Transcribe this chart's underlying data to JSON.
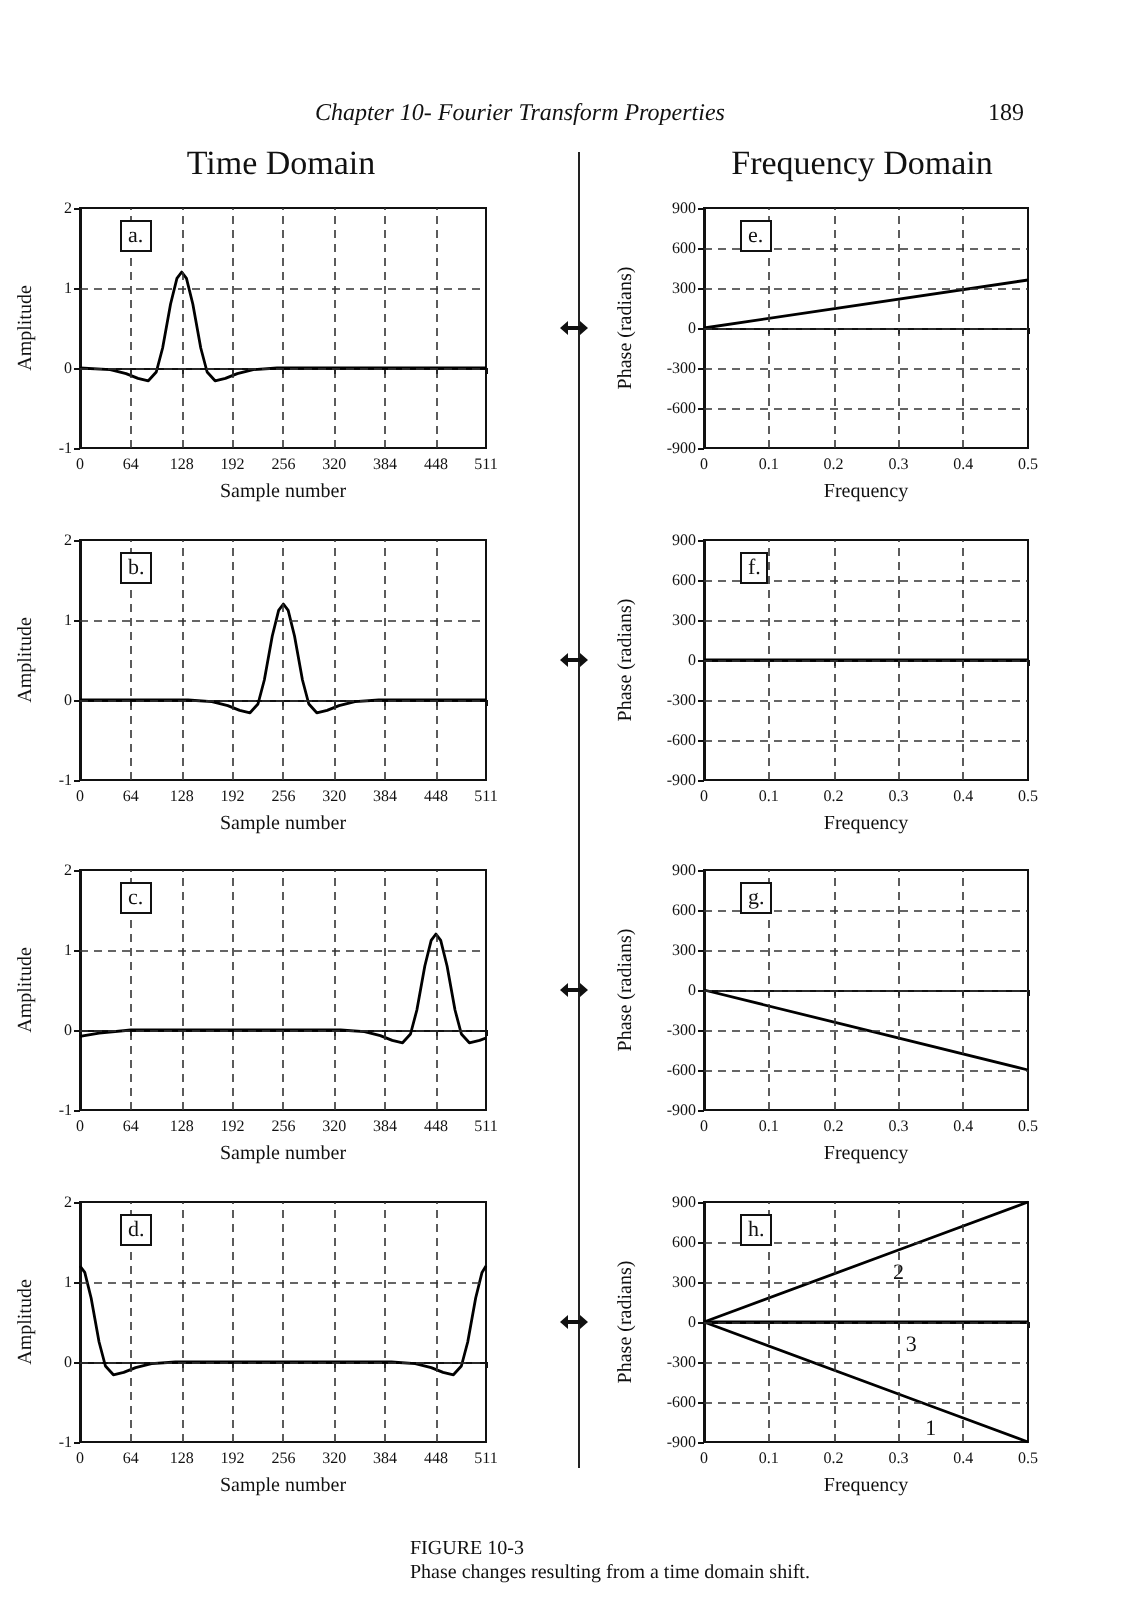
{
  "chart_data": [
    {
      "type": "line",
      "title": "Time Domain",
      "xlabel": "Sample number",
      "ylabel": "Amplitude",
      "annotations": [
        "a.",
        "Chapter 10- Fourier Transform Properties",
        "189"
      ],
      "marker": "none",
      "grid": true,
      "color": "#000000",
      "x": [
        0,
        38,
        58,
        73,
        86,
        96,
        104,
        114,
        122,
        128,
        134,
        142,
        152,
        160,
        170,
        183,
        198,
        218,
        248,
        511
      ],
      "values": [
        0,
        -0.02,
        -0.07,
        -0.13,
        -0.16,
        -0.05,
        0.25,
        0.8,
        1.12,
        1.2,
        1.12,
        0.8,
        0.25,
        -0.05,
        -0.16,
        -0.13,
        -0.07,
        -0.02,
        0,
        0
      ],
      "xlim": [
        0,
        511
      ],
      "xticks": [
        0,
        64,
        128,
        192,
        256,
        320,
        384,
        448,
        511
      ],
      "ylim": [
        -1,
        2
      ],
      "yticks": [
        -1,
        0,
        1,
        2
      ]
    },
    {
      "type": "line",
      "title": "Frequency Domain",
      "xlabel": "Frequency",
      "ylabel": "Phase (radians)",
      "annotations": [
        "e."
      ],
      "marker": "none",
      "grid": true,
      "color": "#000000",
      "x": [
        0,
        0.5
      ],
      "values": [
        0,
        360
      ],
      "xlim": [
        0,
        0.5
      ],
      "xticks": [
        0,
        0.1,
        0.2,
        0.3,
        0.4,
        0.5
      ],
      "ylim": [
        -900,
        900
      ],
      "yticks": [
        -900,
        -600,
        -300,
        0,
        300,
        600,
        900
      ]
    },
    {
      "type": "line",
      "xlabel": "Sample number",
      "ylabel": "Amplitude",
      "annotations": [
        "b."
      ],
      "marker": "none",
      "grid": true,
      "color": "#000000",
      "x": [
        0,
        136,
        166,
        186,
        201,
        214,
        224,
        232,
        242,
        250,
        256,
        262,
        270,
        280,
        288,
        298,
        311,
        326,
        346,
        376,
        511
      ],
      "values": [
        0,
        0,
        -0.02,
        -0.07,
        -0.13,
        -0.16,
        -0.05,
        0.25,
        0.8,
        1.12,
        1.2,
        1.12,
        0.8,
        0.25,
        -0.05,
        -0.16,
        -0.13,
        -0.07,
        -0.02,
        0,
        0
      ],
      "xlim": [
        0,
        511
      ],
      "xticks": [
        0,
        64,
        128,
        192,
        256,
        320,
        384,
        448,
        511
      ],
      "ylim": [
        -1,
        2
      ],
      "yticks": [
        -1,
        0,
        1,
        2
      ]
    },
    {
      "type": "line",
      "xlabel": "Frequency",
      "ylabel": "Phase (radians)",
      "annotations": [
        "f."
      ],
      "marker": "none",
      "grid": true,
      "color": "#000000",
      "x": [
        0,
        0.5
      ],
      "values": [
        0,
        0
      ],
      "xlim": [
        0,
        0.5
      ],
      "xticks": [
        0,
        0.1,
        0.2,
        0.3,
        0.4,
        0.5
      ],
      "ylim": [
        -900,
        900
      ],
      "yticks": [
        -900,
        -600,
        -300,
        0,
        300,
        600,
        900
      ]
    },
    {
      "type": "line",
      "xlabel": "Sample number",
      "ylabel": "Amplitude",
      "annotations": [
        "c."
      ],
      "marker": "none",
      "grid": true,
      "color": "#000000",
      "x": [
        0,
        24,
        64,
        328,
        358,
        378,
        393,
        406,
        416,
        424,
        434,
        442,
        448,
        454,
        462,
        472,
        480,
        490,
        503,
        511
      ],
      "values": [
        -0.08,
        -0.04,
        0,
        0,
        -0.02,
        -0.07,
        -0.13,
        -0.16,
        -0.05,
        0.25,
        0.8,
        1.12,
        1.2,
        1.12,
        0.8,
        0.25,
        -0.05,
        -0.16,
        -0.13,
        -0.1
      ],
      "xlim": [
        0,
        511
      ],
      "xticks": [
        0,
        64,
        128,
        192,
        256,
        320,
        384,
        448,
        511
      ],
      "ylim": [
        -1,
        2
      ],
      "yticks": [
        -1,
        0,
        1,
        2
      ]
    },
    {
      "type": "line",
      "xlabel": "Frequency",
      "ylabel": "Phase (radians)",
      "annotations": [
        "g."
      ],
      "marker": "none",
      "grid": true,
      "color": "#000000",
      "x": [
        0,
        0.5
      ],
      "values": [
        0,
        -600
      ],
      "xlim": [
        0,
        0.5
      ],
      "xticks": [
        0,
        0.1,
        0.2,
        0.3,
        0.4,
        0.5
      ],
      "ylim": [
        -900,
        900
      ],
      "yticks": [
        -900,
        -600,
        -300,
        0,
        300,
        600,
        900
      ]
    },
    {
      "type": "line",
      "xlabel": "Sample number",
      "ylabel": "Amplitude",
      "annotations": [
        "d.",
        "FIGURE 10-3",
        "Phase changes resulting from a time domain shift."
      ],
      "marker": "none",
      "grid": true,
      "color": "#000000",
      "x": [
        0,
        6,
        14,
        24,
        32,
        42,
        55,
        70,
        90,
        120,
        392,
        422,
        442,
        457,
        470,
        480,
        488,
        498,
        506,
        511
      ],
      "values": [
        1.2,
        1.12,
        0.8,
        0.25,
        -0.05,
        -0.16,
        -0.13,
        -0.07,
        -0.02,
        0,
        0,
        -0.02,
        -0.07,
        -0.13,
        -0.16,
        -0.05,
        0.25,
        0.8,
        1.12,
        1.2
      ],
      "xlim": [
        0,
        511
      ],
      "xticks": [
        0,
        64,
        128,
        192,
        256,
        320,
        384,
        448,
        511
      ],
      "ylim": [
        -1,
        2
      ],
      "yticks": [
        -1,
        0,
        1,
        2
      ]
    },
    {
      "type": "line",
      "xlabel": "Frequency",
      "ylabel": "Phase (radians)",
      "annotations": [
        "h."
      ],
      "marker": "none",
      "grid": true,
      "series": [
        {
          "name": "2",
          "color": "#000000",
          "x": [
            0,
            0.3,
            0.5
          ],
          "values": [
            0,
            540,
            900
          ]
        },
        {
          "name": "3",
          "color": "#000000",
          "x": [
            0,
            0.32,
            0.5
          ],
          "values": [
            0,
            0,
            0
          ]
        },
        {
          "name": "1",
          "color": "#000000",
          "x": [
            0,
            0.35,
            0.5
          ],
          "values": [
            0,
            -630,
            -900
          ]
        }
      ],
      "xlim": [
        0,
        0.5
      ],
      "xticks": [
        0,
        0.1,
        0.2,
        0.3,
        0.4,
        0.5
      ],
      "ylim": [
        -900,
        900
      ],
      "yticks": [
        -900,
        -600,
        -300,
        0,
        300,
        600,
        900
      ]
    }
  ]
}
